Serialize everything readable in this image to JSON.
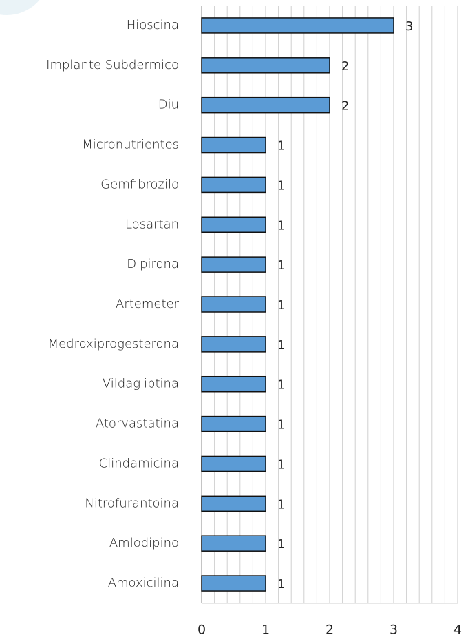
{
  "chart_data": {
    "type": "bar",
    "orientation": "horizontal",
    "categories": [
      "Hioscina",
      "Implante Subdermico",
      "Diu",
      "Micronutrientes",
      "Gemfibrozilo",
      "Losartan",
      "Dipirona",
      "Artemeter",
      "Medroxiprogesterona",
      "Vildagliptina",
      "Atorvastatina",
      "Clindamicina",
      "Nitrofurantoina",
      "Amlodipino",
      "Amoxicilina"
    ],
    "values": [
      3,
      2,
      2,
      1,
      1,
      1,
      1,
      1,
      1,
      1,
      1,
      1,
      1,
      1,
      1
    ],
    "color": "#5b9bd5",
    "xlim": [
      0,
      4
    ],
    "xticks": [
      0,
      1,
      2,
      3,
      4
    ],
    "minor_xticks": [
      0.2,
      0.4,
      0.6,
      0.8,
      1.2,
      1.4,
      1.6,
      1.8,
      2.2,
      2.4,
      2.6,
      2.8,
      3.2,
      3.4,
      3.6,
      3.8
    ],
    "grid": true
  }
}
